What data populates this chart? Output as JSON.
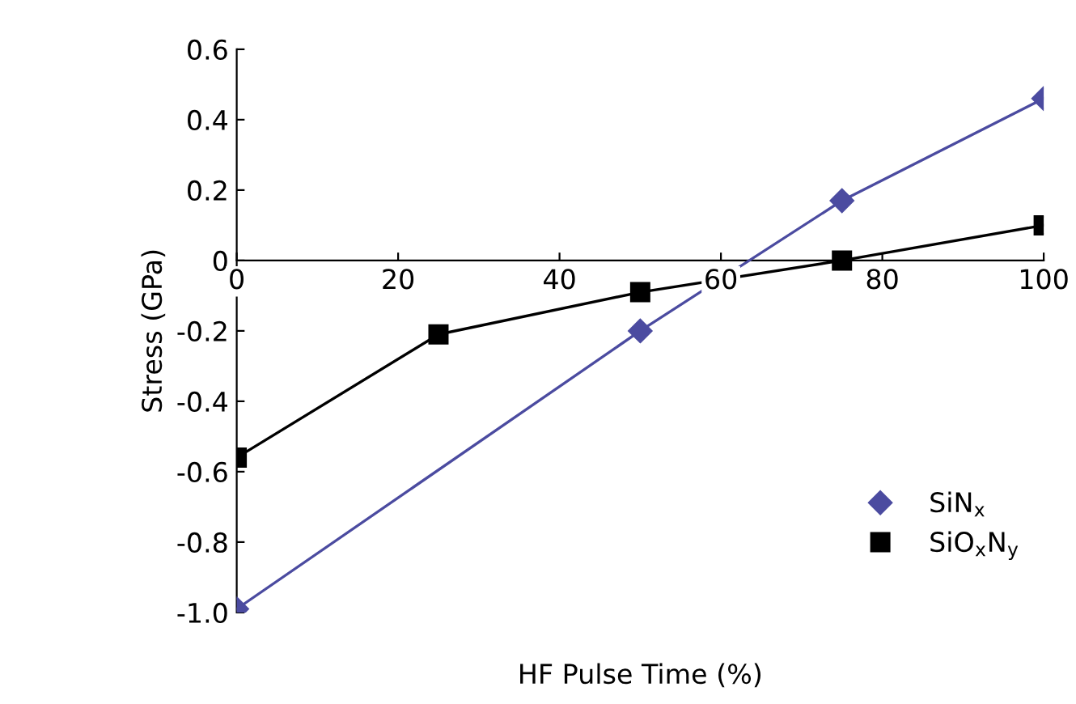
{
  "chart_data": {
    "type": "line",
    "xlabel": "HF Pulse Time (%)",
    "ylabel": "Stress (GPa)",
    "xlim": [
      0,
      100
    ],
    "xticks": [
      0,
      20,
      40,
      60,
      80,
      100
    ],
    "ylim": [
      -1.0,
      0.6
    ],
    "yticks": [
      {
        "value": -1.0,
        "label": "-1.0"
      },
      {
        "value": -0.8,
        "label": "-0.8"
      },
      {
        "value": -0.6,
        "label": "-0.6"
      },
      {
        "value": -0.4,
        "label": "-0.4"
      },
      {
        "value": -0.2,
        "label": "-0.2"
      },
      {
        "value": 0,
        "label": "0"
      },
      {
        "value": 0.2,
        "label": "0.2"
      },
      {
        "value": 0.4,
        "label": "0.4"
      },
      {
        "value": 0.6,
        "label": "0.6"
      }
    ],
    "grid": false,
    "legend": "bottom right",
    "series": [
      {
        "name": "SiN$_{x}$",
        "color": "#4b4ba0",
        "marker": "diamond",
        "x": [
          0,
          50,
          75,
          100
        ],
        "values": [
          -0.99,
          -0.2,
          0.17,
          0.46
        ]
      },
      {
        "name": "SiO$_{x}$N$_{y}$",
        "color": "#000000",
        "marker": "square",
        "x": [
          0,
          25,
          50,
          75,
          100
        ],
        "values": [
          -0.56,
          -0.21,
          -0.09,
          0.0,
          0.1
        ]
      }
    ]
  }
}
